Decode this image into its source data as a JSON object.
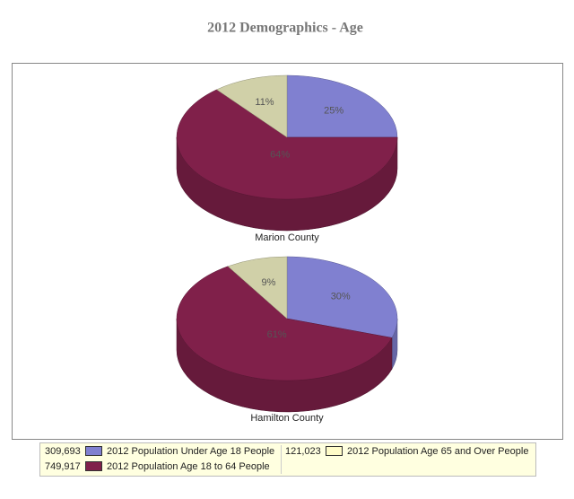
{
  "title": "2012 Demographics - Age",
  "chart_data": [
    {
      "type": "pie",
      "label": "Marion County",
      "categories": [
        "2012 Population Under Age 18 People",
        "2012 Population Age 18 to 64 People",
        "2012 Population Age 65 and Over People"
      ],
      "values": [
        25,
        64,
        11
      ],
      "value_labels": [
        "25%",
        "64%",
        "11%"
      ],
      "colors": [
        "#8080d0",
        "#80204a",
        "#d0d0a8"
      ]
    },
    {
      "type": "pie",
      "label": "Hamilton County",
      "categories": [
        "2012 Population Under Age 18 People",
        "2012 Population Age 18 to 64 People",
        "2012 Population Age 65 and Over People"
      ],
      "values": [
        30,
        61,
        9
      ],
      "value_labels": [
        "30%",
        "61%",
        "9%"
      ],
      "colors": [
        "#8080d0",
        "#80204a",
        "#d0d0a8"
      ]
    }
  ],
  "legend": [
    {
      "amount": "309,693",
      "name": "2012 Population Under Age 18 People",
      "color": "#8080d0"
    },
    {
      "amount": "749,917",
      "name": "2012 Population Age 18 to 64 People",
      "color": "#80204a"
    },
    {
      "amount": "121,023",
      "name": "2012 Population Age 65 and Over People",
      "color": "#fffcc8"
    }
  ]
}
